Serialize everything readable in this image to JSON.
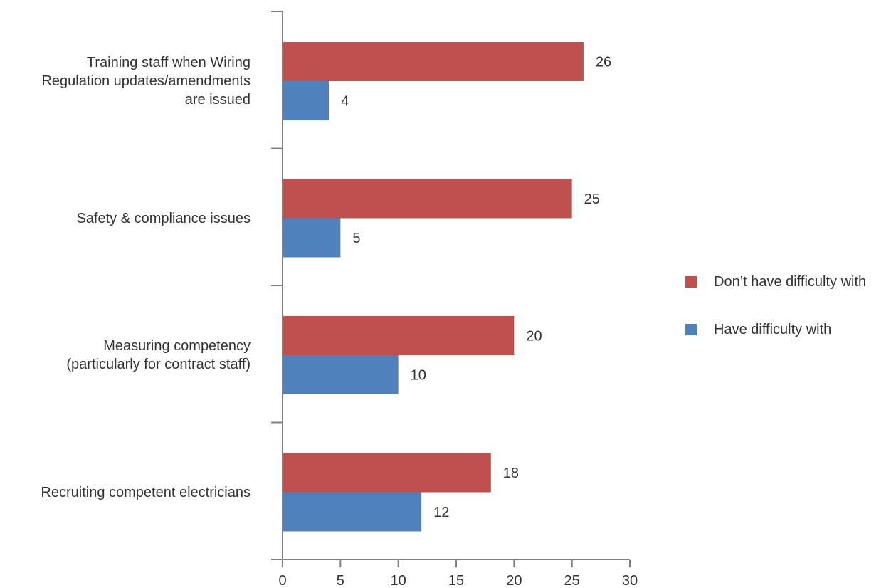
{
  "chart_data": {
    "type": "bar",
    "orientation": "horizontal",
    "categories": [
      "Training staff when Wiring\nRegulation updates/amendments\nare issued",
      "Safety & compliance issues",
      "Measuring competency\n(particularly for contract staff)",
      "Recruiting competent electricians"
    ],
    "series": [
      {
        "name": "Don’t have difficulty with",
        "color": "#c0504d",
        "values": [
          26,
          25,
          20,
          18
        ]
      },
      {
        "name": "Have difficulty with",
        "color": "#4f81bd",
        "values": [
          4,
          5,
          10,
          12
        ]
      }
    ],
    "xlim": [
      0,
      30
    ],
    "x_ticks": [
      "0",
      "5",
      "10",
      "15",
      "20",
      "25",
      "30"
    ],
    "grid": false,
    "legend_position": "right"
  }
}
